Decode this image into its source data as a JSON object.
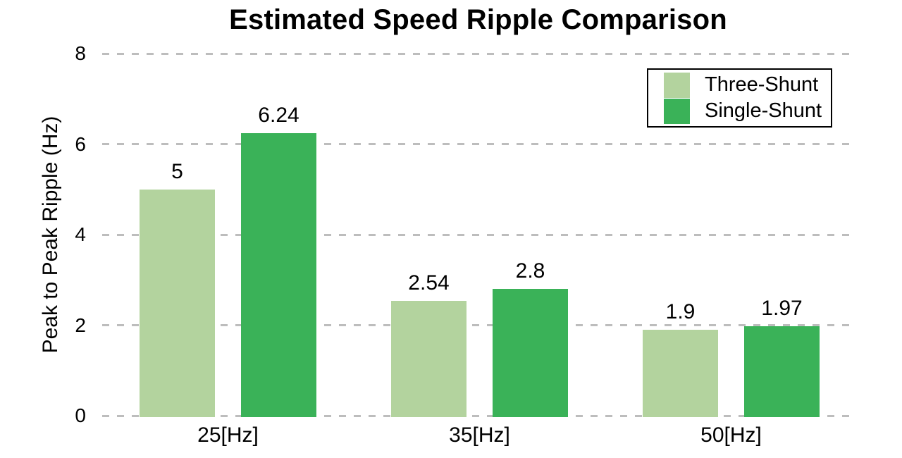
{
  "chart_data": {
    "type": "bar",
    "title": "Estimated Speed Ripple Comparison",
    "xlabel": "",
    "ylabel": "Peak to Peak Ripple (Hz)",
    "categories": [
      "25[Hz]",
      "35[Hz]",
      "50[Hz]"
    ],
    "series": [
      {
        "name": "Three-Shunt",
        "color": "#b3d39e",
        "values": [
          5,
          2.54,
          1.9
        ],
        "value_labels": [
          "5",
          "2.54",
          "1.9"
        ]
      },
      {
        "name": "Single-Shunt",
        "color": "#3ab258",
        "values": [
          6.24,
          2.8,
          1.97
        ],
        "value_labels": [
          "6.24",
          "2.8",
          "1.97"
        ]
      }
    ],
    "ylim": [
      0,
      8
    ],
    "yticks": [
      "0",
      "2",
      "4",
      "6",
      "8"
    ],
    "grid": "horizontal-dashed",
    "gridline_color": "#bdbdbd",
    "legend_position": "top-right",
    "legend_border_color": "#000000",
    "text_color": "#000000",
    "background_color": "#ffffff"
  }
}
